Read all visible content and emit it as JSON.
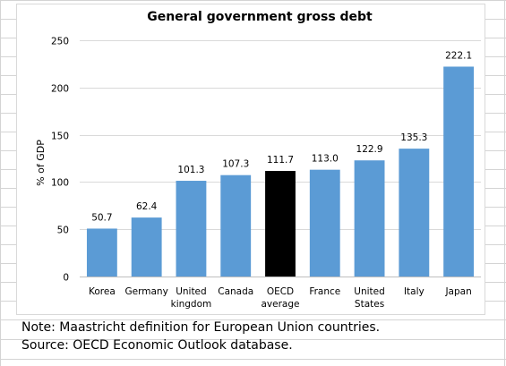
{
  "chart_data": {
    "type": "bar",
    "title": "General government gross debt",
    "ylabel": "% of GDP",
    "xlabel": "",
    "ylim": [
      0,
      250
    ],
    "yticks": [
      0,
      50,
      100,
      150,
      200,
      250
    ],
    "grid": true,
    "legend": "none",
    "categories": [
      [
        "Korea"
      ],
      [
        "Germany"
      ],
      [
        "United",
        "kingdom"
      ],
      [
        "Canada"
      ],
      [
        "OECD",
        "average"
      ],
      [
        "France"
      ],
      [
        "United",
        "States"
      ],
      [
        "Italy"
      ],
      [
        "Japan"
      ]
    ],
    "values": [
      50.7,
      62.4,
      101.3,
      107.3,
      111.7,
      113.0,
      122.9,
      135.3,
      222.1
    ],
    "value_labels": [
      "50.7",
      "62.4",
      "101.3",
      "107.3",
      "111.7",
      "113.0",
      "122.9",
      "135.3",
      "222.1"
    ],
    "highlight_index": 4,
    "colors": {
      "bar": "#5b9bd5",
      "highlight": "#000000",
      "grid": "#d9d9d9",
      "text": "#000000"
    }
  },
  "notes": {
    "line1": "Note: Maastricht definition for European Union countries.",
    "line2": "Source: OECD Economic Outlook database."
  }
}
